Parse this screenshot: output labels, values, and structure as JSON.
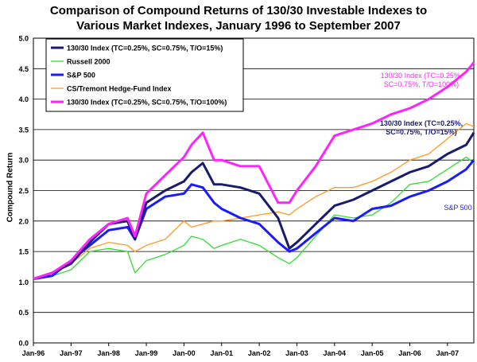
{
  "chart_data": {
    "type": "line",
    "title_line1": "Comparison of Compound Returns of 130/30 Investable Indexes to",
    "title_line2": "Various Market Indexes, January 1996 to September 2007",
    "ylabel": "Compound Return",
    "xlabel": "",
    "ylim": [
      0.0,
      5.0
    ],
    "yticks": [
      "0.0",
      "0.5",
      "1.0",
      "1.5",
      "2.0",
      "2.5",
      "3.0",
      "3.5",
      "4.0",
      "4.5",
      "5.0"
    ],
    "xticks": [
      "Jan-96",
      "Jan-97",
      "Jan-98",
      "Jan-99",
      "Jan-00",
      "Jan-01",
      "Jan-02",
      "Jan-03",
      "Jan-04",
      "Jan-05",
      "Jan-06",
      "Jan-07"
    ],
    "grid": "horizontal",
    "legend_position": "top-left",
    "series": [
      {
        "name": "130/30 Index (TC=0.25%, SC=0.75%, T/O=15%)",
        "color": "#1a1a6e",
        "x": [
          1996.0,
          1996.5,
          1997.0,
          1997.5,
          1998.0,
          1998.5,
          1998.7,
          1999.0,
          1999.5,
          2000.0,
          2000.2,
          2000.5,
          2000.8,
          2001.0,
          2001.5,
          2002.0,
          2002.5,
          2002.8,
          2003.0,
          2003.5,
          2004.0,
          2004.5,
          2005.0,
          2005.5,
          2006.0,
          2006.5,
          2007.0,
          2007.5,
          2007.7
        ],
        "values": [
          1.05,
          1.15,
          1.3,
          1.65,
          1.95,
          2.0,
          1.7,
          2.3,
          2.5,
          2.65,
          2.8,
          2.95,
          2.6,
          2.6,
          2.55,
          2.45,
          2.05,
          1.55,
          1.65,
          1.95,
          2.25,
          2.35,
          2.5,
          2.65,
          2.8,
          2.9,
          3.1,
          3.25,
          3.45
        ]
      },
      {
        "name": "Russell 2000",
        "color": "#33dd33",
        "x": [
          1996.0,
          1996.5,
          1997.0,
          1997.5,
          1998.0,
          1998.5,
          1998.7,
          1999.0,
          1999.5,
          2000.0,
          2000.2,
          2000.5,
          2000.8,
          2001.0,
          2001.5,
          2002.0,
          2002.5,
          2002.8,
          2003.0,
          2003.5,
          2004.0,
          2004.5,
          2005.0,
          2005.5,
          2006.0,
          2006.5,
          2007.0,
          2007.5,
          2007.7
        ],
        "values": [
          1.05,
          1.1,
          1.2,
          1.5,
          1.55,
          1.5,
          1.15,
          1.35,
          1.45,
          1.6,
          1.75,
          1.7,
          1.55,
          1.6,
          1.7,
          1.6,
          1.4,
          1.3,
          1.4,
          1.75,
          2.1,
          2.05,
          2.1,
          2.3,
          2.6,
          2.65,
          2.85,
          3.05,
          2.95
        ]
      },
      {
        "name": "S&P 500",
        "color": "#1a1aff",
        "x": [
          1996.0,
          1996.5,
          1997.0,
          1997.5,
          1998.0,
          1998.5,
          1998.7,
          1999.0,
          1999.5,
          2000.0,
          2000.2,
          2000.5,
          2000.8,
          2001.0,
          2001.5,
          2002.0,
          2002.5,
          2002.8,
          2003.0,
          2003.5,
          2004.0,
          2004.5,
          2005.0,
          2005.5,
          2006.0,
          2006.5,
          2007.0,
          2007.5,
          2007.7
        ],
        "values": [
          1.05,
          1.1,
          1.35,
          1.6,
          1.85,
          1.9,
          1.7,
          2.2,
          2.4,
          2.45,
          2.6,
          2.55,
          2.3,
          2.2,
          2.05,
          1.95,
          1.65,
          1.5,
          1.55,
          1.8,
          2.05,
          2.0,
          2.2,
          2.25,
          2.4,
          2.5,
          2.65,
          2.85,
          3.0
        ]
      },
      {
        "name": "CS/Tremont Hedge-Fund Index",
        "color": "#ff9922",
        "x": [
          1996.0,
          1996.5,
          1997.0,
          1997.5,
          1998.0,
          1998.5,
          1998.7,
          1999.0,
          1999.5,
          2000.0,
          2000.2,
          2000.5,
          2000.8,
          2001.0,
          2001.5,
          2002.0,
          2002.5,
          2002.8,
          2003.0,
          2003.5,
          2004.0,
          2004.5,
          2005.0,
          2005.5,
          2006.0,
          2006.5,
          2007.0,
          2007.5,
          2007.7
        ],
        "values": [
          1.05,
          1.15,
          1.3,
          1.55,
          1.65,
          1.6,
          1.5,
          1.6,
          1.7,
          2.0,
          1.9,
          1.95,
          2.0,
          2.0,
          2.05,
          2.1,
          2.15,
          2.1,
          2.2,
          2.4,
          2.55,
          2.55,
          2.65,
          2.8,
          3.0,
          3.1,
          3.35,
          3.6,
          3.55
        ]
      },
      {
        "name": "130/30 Index (TC=0.25%, SC=0.75%, T/O=100%)",
        "color": "#ff22ff",
        "x": [
          1996.0,
          1996.5,
          1997.0,
          1997.5,
          1998.0,
          1998.5,
          1998.7,
          1999.0,
          1999.5,
          2000.0,
          2000.2,
          2000.5,
          2000.8,
          2001.0,
          2001.5,
          2002.0,
          2002.5,
          2002.8,
          2003.0,
          2003.5,
          2004.0,
          2004.5,
          2005.0,
          2005.5,
          2006.0,
          2006.5,
          2007.0,
          2007.5,
          2007.7
        ],
        "values": [
          1.05,
          1.15,
          1.35,
          1.7,
          1.95,
          2.05,
          1.75,
          2.45,
          2.75,
          3.05,
          3.25,
          3.45,
          3.0,
          3.0,
          2.9,
          2.9,
          2.3,
          2.3,
          2.5,
          2.9,
          3.4,
          3.5,
          3.6,
          3.75,
          3.85,
          4.0,
          4.2,
          4.45,
          4.6
        ]
      }
    ],
    "annotations": [
      {
        "text_line1": "130/30 Index (TC=0.25%,",
        "text_line2": "SC=0.75%, T/O=100%)",
        "color": "#ff22ff"
      },
      {
        "text_line1": "130/30 Index (TC=0.25%,",
        "text_line2": "SC=0.75%, T/O=15%)",
        "color": "#1a1a6e"
      },
      {
        "text_line1": "S&P 500",
        "text_line2": "",
        "color": "#1a1aff"
      }
    ]
  }
}
